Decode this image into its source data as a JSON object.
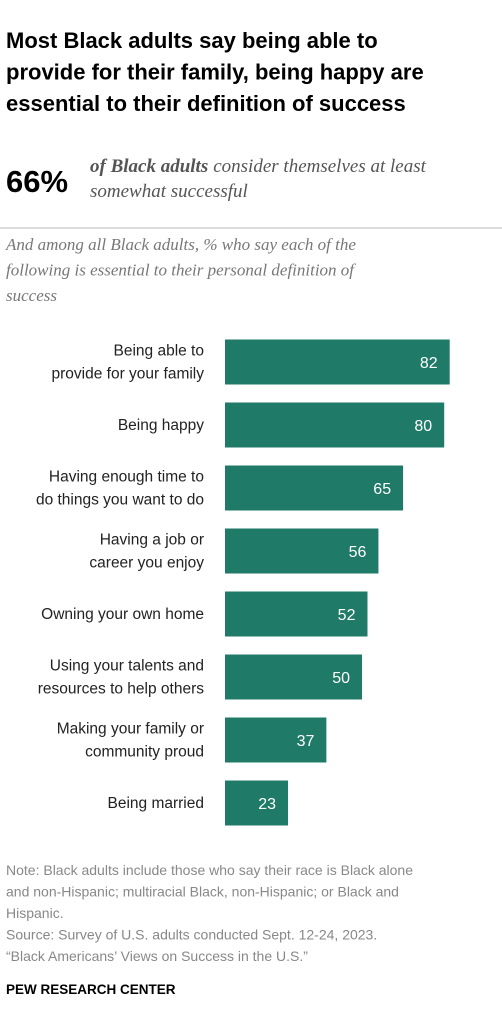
{
  "chart_data": {
    "type": "bar",
    "orientation": "horizontal",
    "title": [
      "Most Black adults say being able to",
      "provide for their family, being happy are",
      "essential to their definition of success"
    ],
    "headline": {
      "figure": "66%",
      "emphasis": "of Black adults",
      "text": [
        "consider themselves at least",
        "somewhat successful"
      ]
    },
    "subtitle": [
      "And among all Black adults, % who say each of the",
      "following is essential to their personal definition of",
      "success"
    ],
    "categories": [
      [
        "Being able to",
        "provide for your family"
      ],
      [
        "Being happy"
      ],
      [
        "Having enough time to",
        "do things you want to do"
      ],
      [
        "Having a job or",
        "career you enjoy"
      ],
      [
        "Owning your own home"
      ],
      [
        "Using your talents and",
        "resources to help others"
      ],
      [
        "Making your family or",
        "community proud"
      ],
      [
        "Being married"
      ]
    ],
    "values": [
      82,
      80,
      65,
      56,
      52,
      50,
      37,
      23
    ],
    "color": "#1f7a67",
    "xlim": [
      0,
      100
    ],
    "note": [
      "Note: Black adults include those who say their race is Black alone",
      "and non-Hispanic; multiracial Black, non-Hispanic; or Black and",
      "Hispanic.",
      "Source: Survey of U.S. adults conducted Sept. 12-24, 2023.",
      "“Black Americans’ Views on Success in the U.S.”"
    ],
    "footer": "PEW RESEARCH CENTER"
  }
}
